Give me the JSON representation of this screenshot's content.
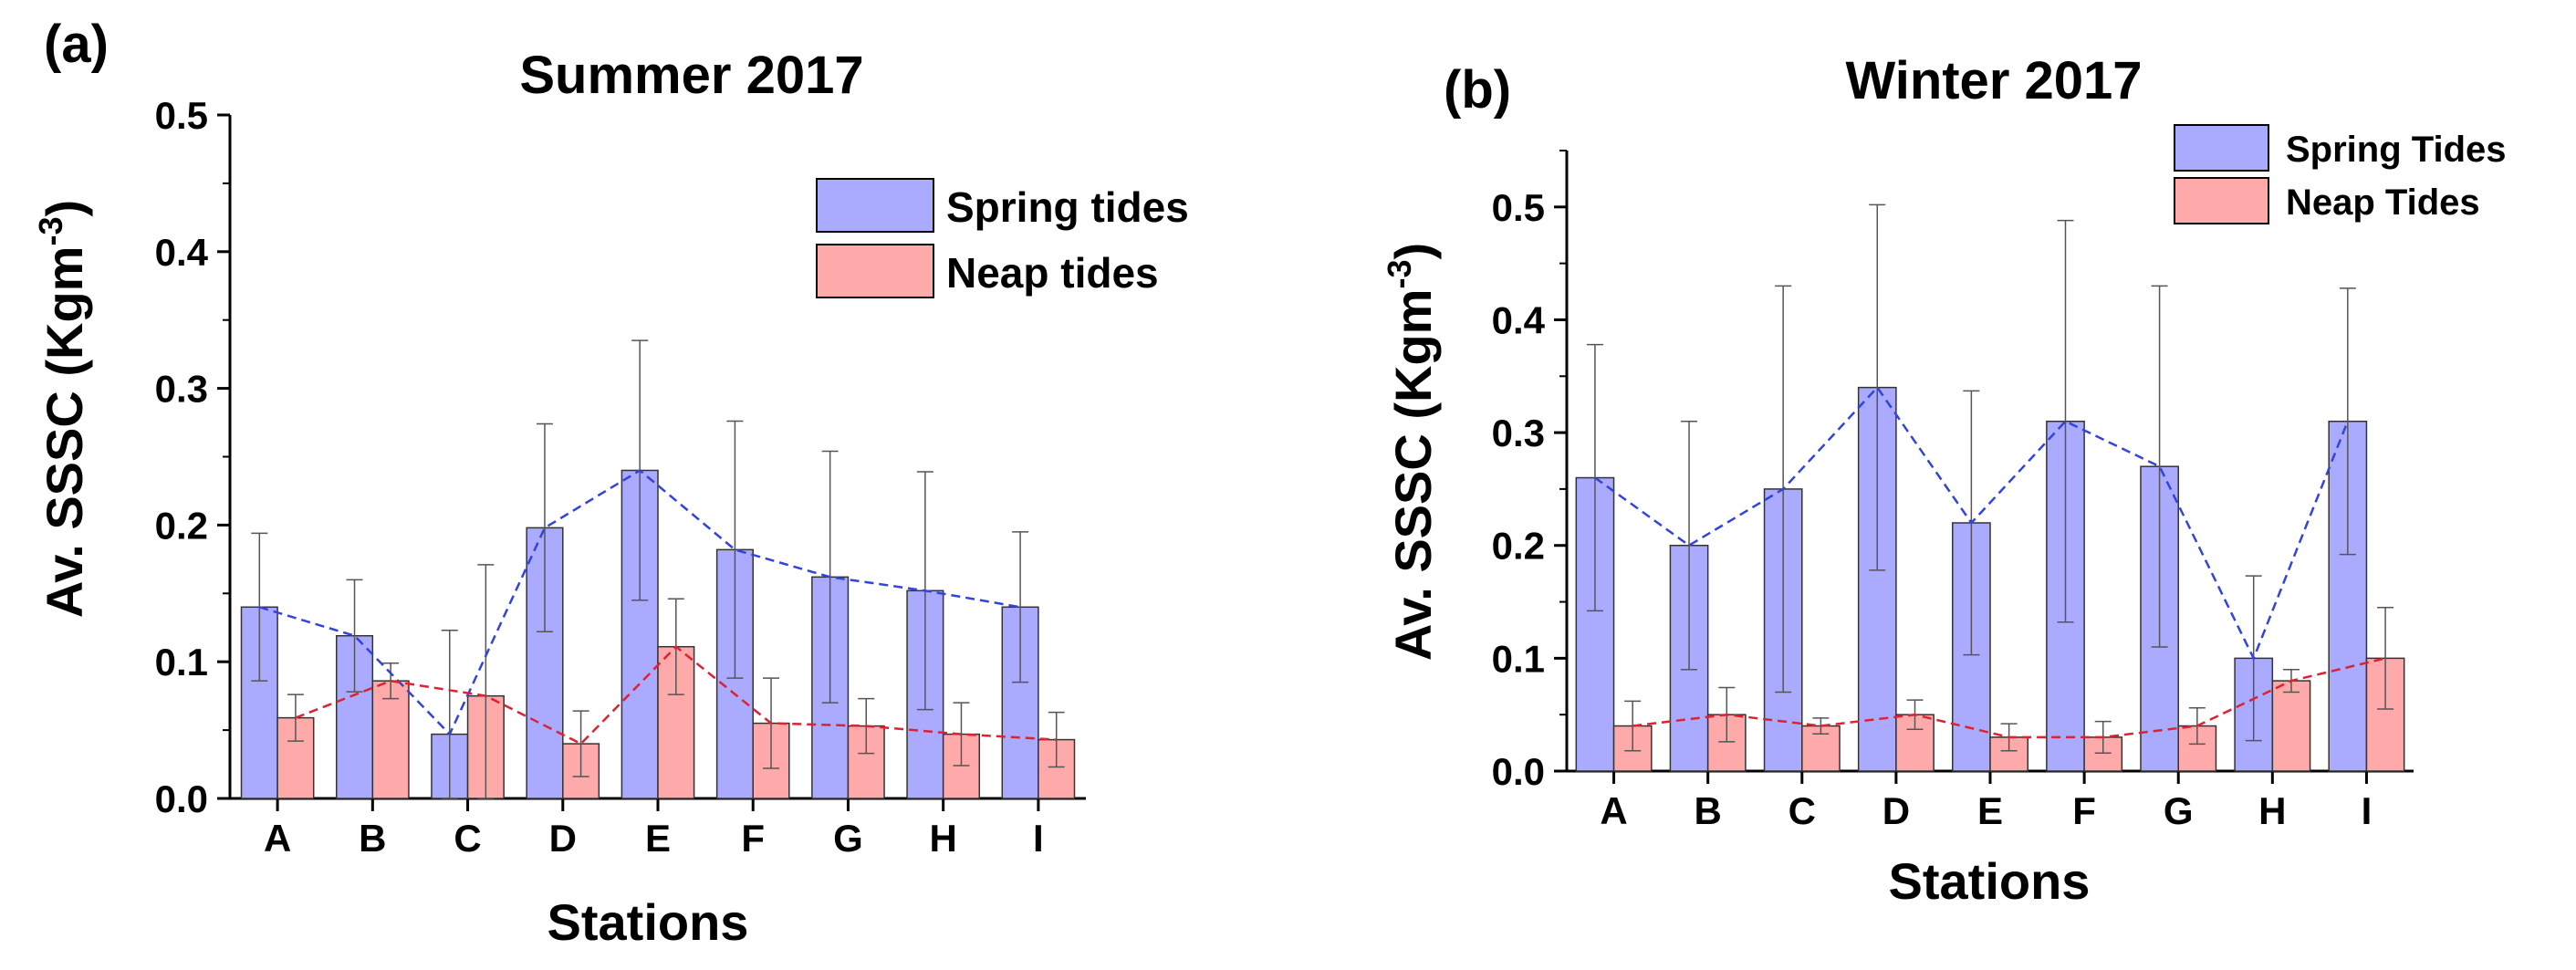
{
  "chart_data": [
    {
      "type": "bar",
      "panel_label": "(a)",
      "title": "Summer 2017",
      "xlabel": "Stations",
      "ylabel": "Av. SSSC (Kgm",
      "ylabel_sup": "-3",
      "ylabel_close": ")",
      "ylim": [
        0,
        0.5
      ],
      "yticks": [
        "0.0",
        "0.1",
        "0.2",
        "0.3",
        "0.4",
        "0.5"
      ],
      "categories": [
        "A",
        "B",
        "C",
        "D",
        "E",
        "F",
        "G",
        "H",
        "I"
      ],
      "legend_position": "top-right",
      "series": [
        {
          "name": "Spring tides",
          "color": "#aaaaff",
          "line_color": "#3344dd",
          "values": [
            0.14,
            0.119,
            0.047,
            0.198,
            0.24,
            0.182,
            0.162,
            0.152,
            0.14
          ],
          "errors": [
            0.054,
            0.041,
            0.076,
            0.076,
            0.095,
            0.094,
            0.092,
            0.087,
            0.055
          ]
        },
        {
          "name": "Neap tides",
          "color": "#ffaaaa",
          "line_color": "#dd2233",
          "values": [
            0.059,
            0.086,
            0.075,
            0.04,
            0.111,
            0.055,
            0.053,
            0.047,
            0.043
          ],
          "errors": [
            0.017,
            0.013,
            0.096,
            0.024,
            0.035,
            0.033,
            0.02,
            0.023,
            0.02
          ]
        }
      ]
    },
    {
      "type": "bar",
      "panel_label": "(b)",
      "title": "Winter 2017",
      "xlabel": "Stations",
      "ylabel": "Av. SSSC (Kgm",
      "ylabel_sup": "-3",
      "ylabel_close": ")",
      "ylim": [
        0,
        0.55
      ],
      "yticks": [
        "0.0",
        "0.1",
        "0.2",
        "0.3",
        "0.4",
        "0.5"
      ],
      "categories": [
        "A",
        "B",
        "C",
        "D",
        "E",
        "F",
        "G",
        "H",
        "I"
      ],
      "legend_position": "top-right",
      "series": [
        {
          "name": "Spring Tides",
          "color": "#aaaaff",
          "line_color": "#3344dd",
          "values": [
            0.26,
            0.2,
            0.25,
            0.34,
            0.22,
            0.31,
            0.27,
            0.1,
            0.31
          ],
          "errors": [
            0.118,
            0.11,
            0.18,
            0.162,
            0.117,
            0.178,
            0.16,
            0.073,
            0.118
          ]
        },
        {
          "name": "Neap Tides",
          "color": "#ffaaaa",
          "line_color": "#dd2233",
          "values": [
            0.04,
            0.05,
            0.04,
            0.05,
            0.03,
            0.03,
            0.04,
            0.08,
            0.1
          ],
          "errors": [
            0.022,
            0.024,
            0.007,
            0.013,
            0.012,
            0.014,
            0.016,
            0.01,
            0.045
          ]
        }
      ]
    }
  ]
}
